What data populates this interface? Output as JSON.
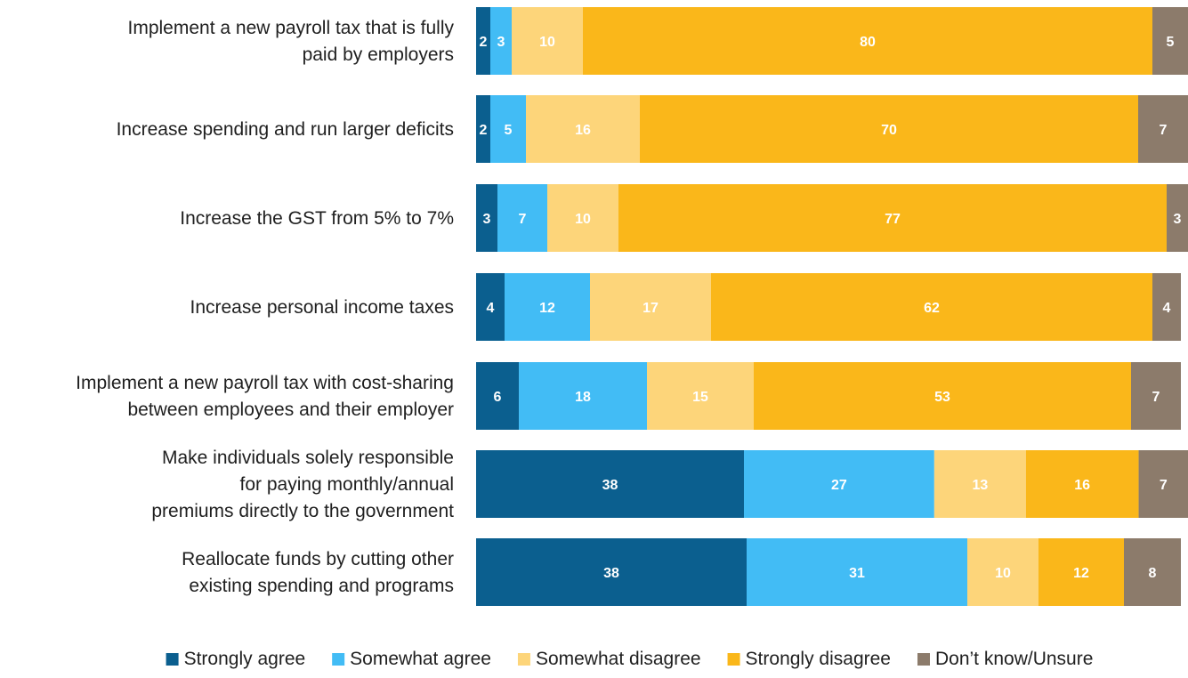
{
  "chart_data": {
    "type": "bar",
    "orientation": "horizontal",
    "stacked": true,
    "title": "",
    "xlabel": "",
    "ylabel": "",
    "xlim": [
      0,
      100
    ],
    "grid": false,
    "legend_position": "bottom",
    "categories": [
      [
        "Implement a new payroll tax that is fully",
        "paid by employers"
      ],
      [
        "Increase spending and run larger deficits"
      ],
      [
        "Increase the GST from 5% to 7%"
      ],
      [
        "Increase personal income taxes"
      ],
      [
        "Implement a new payroll tax with cost-sharing",
        "between employees and their employer"
      ],
      [
        "Make individuals solely responsible",
        "for paying monthly/annual",
        "premiums directly to the government"
      ],
      [
        "Reallocate funds by cutting other",
        "existing spending and programs"
      ]
    ],
    "series": [
      {
        "name": "Strongly agree",
        "color": "#0b5f8f",
        "values": [
          2,
          2,
          3,
          4,
          6,
          38,
          38
        ]
      },
      {
        "name": "Somewhat agree",
        "color": "#42bcf5",
        "values": [
          3,
          5,
          7,
          12,
          18,
          27,
          31
        ]
      },
      {
        "name": "Somewhat disagree",
        "color": "#fdd57a",
        "values": [
          10,
          16,
          10,
          17,
          15,
          13,
          10
        ]
      },
      {
        "name": "Strongly disagree",
        "color": "#fab71a",
        "values": [
          80,
          70,
          77,
          62,
          53,
          16,
          12
        ]
      },
      {
        "name": "Don’t know/Unsure",
        "color": "#8c7b6b",
        "values": [
          5,
          7,
          3,
          4,
          7,
          7,
          8
        ]
      }
    ]
  }
}
